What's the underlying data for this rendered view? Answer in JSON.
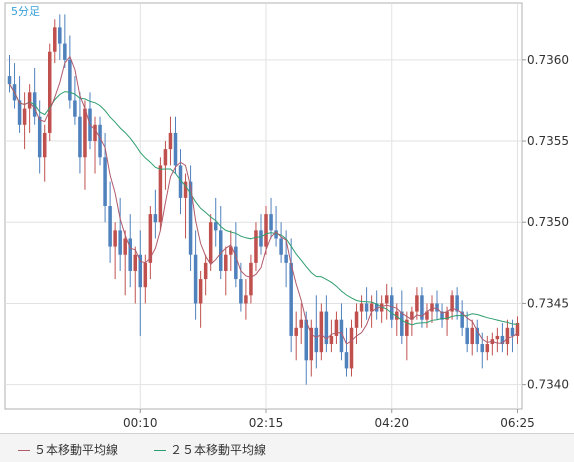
{
  "chart_data": {
    "type": "candlestick",
    "title": "5分足",
    "y_ticks": [
      "0.7360",
      "0.7355",
      "0.7350",
      "0.7345",
      "0.7340"
    ],
    "y_tick_values": [
      0.736,
      0.7355,
      0.735,
      0.7345,
      0.734
    ],
    "ylim": [
      0.73385,
      0.73635
    ],
    "x_ticks": [
      "00:10",
      "02:15",
      "04:20",
      "06:25"
    ],
    "x_tick_index": [
      26,
      51,
      76,
      101
    ],
    "grid": true,
    "colors": {
      "up": "#c0504d",
      "down": "#4f81bd",
      "ma5": "#b05a6a",
      "ma25": "#2e9e6e"
    },
    "series": [
      {
        "name": "５本移動平均線",
        "color": "#b05a6a"
      },
      {
        "name": "２５本移動平均線",
        "color": "#2e9e6e"
      }
    ],
    "ohlc": [
      [
        0.7359,
        0.73603,
        0.7358,
        0.73585
      ],
      [
        0.73585,
        0.73598,
        0.7357,
        0.73575
      ],
      [
        0.73575,
        0.7359,
        0.73555,
        0.7356
      ],
      [
        0.7356,
        0.7358,
        0.73545,
        0.7357
      ],
      [
        0.7357,
        0.73585,
        0.73555,
        0.7358
      ],
      [
        0.7358,
        0.73595,
        0.7356,
        0.73565
      ],
      [
        0.73565,
        0.73575,
        0.7353,
        0.7354
      ],
      [
        0.7354,
        0.7356,
        0.73525,
        0.73555
      ],
      [
        0.73555,
        0.7361,
        0.7355,
        0.73605
      ],
      [
        0.73605,
        0.73625,
        0.73598,
        0.7362
      ],
      [
        0.7362,
        0.73628,
        0.736,
        0.7361
      ],
      [
        0.7361,
        0.73628,
        0.73595,
        0.736
      ],
      [
        0.736,
        0.73615,
        0.7357,
        0.73575
      ],
      [
        0.73575,
        0.7359,
        0.7356,
        0.73565
      ],
      [
        0.73565,
        0.7358,
        0.7353,
        0.7354
      ],
      [
        0.7354,
        0.73575,
        0.7352,
        0.7357
      ],
      [
        0.7357,
        0.7358,
        0.73545,
        0.7355
      ],
      [
        0.7355,
        0.73565,
        0.7353,
        0.7356
      ],
      [
        0.7356,
        0.73565,
        0.73535,
        0.7354
      ],
      [
        0.7354,
        0.73555,
        0.735,
        0.7351
      ],
      [
        0.7351,
        0.73525,
        0.73475,
        0.73485
      ],
      [
        0.73485,
        0.735,
        0.73465,
        0.73495
      ],
      [
        0.73495,
        0.73515,
        0.7347,
        0.7348
      ],
      [
        0.7348,
        0.73495,
        0.73455,
        0.7349
      ],
      [
        0.7349,
        0.73505,
        0.7346,
        0.7347
      ],
      [
        0.7347,
        0.73485,
        0.7345,
        0.7348
      ],
      [
        0.7348,
        0.73495,
        0.7343,
        0.7346
      ],
      [
        0.7346,
        0.7348,
        0.7345,
        0.73475
      ],
      [
        0.73475,
        0.7351,
        0.73465,
        0.73505
      ],
      [
        0.73505,
        0.7352,
        0.7349,
        0.735
      ],
      [
        0.735,
        0.7354,
        0.73495,
        0.73535
      ],
      [
        0.73535,
        0.7355,
        0.7352,
        0.73545
      ],
      [
        0.73545,
        0.73565,
        0.73535,
        0.73555
      ],
      [
        0.73555,
        0.73565,
        0.7353,
        0.73535
      ],
      [
        0.73535,
        0.73545,
        0.73505,
        0.73515
      ],
      [
        0.73515,
        0.7353,
        0.7349,
        0.73525
      ],
      [
        0.73525,
        0.73535,
        0.7347,
        0.7348
      ],
      [
        0.7348,
        0.73495,
        0.7344,
        0.7345
      ],
      [
        0.7345,
        0.7347,
        0.73435,
        0.73465
      ],
      [
        0.73465,
        0.7348,
        0.73455,
        0.73475
      ],
      [
        0.73475,
        0.73505,
        0.7347,
        0.735
      ],
      [
        0.735,
        0.73515,
        0.73485,
        0.73495
      ],
      [
        0.73495,
        0.7351,
        0.73465,
        0.7347
      ],
      [
        0.7347,
        0.73485,
        0.73455,
        0.7348
      ],
      [
        0.7348,
        0.73495,
        0.7347,
        0.73485
      ],
      [
        0.73485,
        0.735,
        0.7346,
        0.73465
      ],
      [
        0.73465,
        0.73475,
        0.73445,
        0.7345
      ],
      [
        0.7345,
        0.73465,
        0.7344,
        0.73455
      ],
      [
        0.73455,
        0.7348,
        0.7345,
        0.73475
      ],
      [
        0.73475,
        0.735,
        0.7347,
        0.73495
      ],
      [
        0.73495,
        0.73505,
        0.7348,
        0.73485
      ],
      [
        0.73485,
        0.7351,
        0.7348,
        0.73505
      ],
      [
        0.73505,
        0.73515,
        0.7349,
        0.73495
      ],
      [
        0.73495,
        0.7351,
        0.73485,
        0.7349
      ],
      [
        0.7349,
        0.735,
        0.73475,
        0.7348
      ],
      [
        0.7348,
        0.73495,
        0.7346,
        0.73475
      ],
      [
        0.73475,
        0.7349,
        0.7342,
        0.7343
      ],
      [
        0.7343,
        0.73445,
        0.73415,
        0.73435
      ],
      [
        0.73435,
        0.7345,
        0.73425,
        0.7344
      ],
      [
        0.7344,
        0.73445,
        0.734,
        0.73415
      ],
      [
        0.73415,
        0.7344,
        0.73405,
        0.73435
      ],
      [
        0.73435,
        0.73455,
        0.7341,
        0.7342
      ],
      [
        0.7342,
        0.7345,
        0.73415,
        0.73445
      ],
      [
        0.73445,
        0.73455,
        0.7342,
        0.73425
      ],
      [
        0.73425,
        0.7344,
        0.7342,
        0.7343
      ],
      [
        0.7343,
        0.73445,
        0.73425,
        0.7344
      ],
      [
        0.7344,
        0.7345,
        0.73415,
        0.7342
      ],
      [
        0.7342,
        0.73435,
        0.73405,
        0.7341
      ],
      [
        0.7341,
        0.7344,
        0.73405,
        0.73435
      ],
      [
        0.73435,
        0.7345,
        0.73425,
        0.73445
      ],
      [
        0.73445,
        0.73455,
        0.73435,
        0.7345
      ],
      [
        0.7345,
        0.7346,
        0.7344,
        0.73445
      ],
      [
        0.73445,
        0.73455,
        0.73435,
        0.7345
      ],
      [
        0.7345,
        0.73458,
        0.7344,
        0.73445
      ],
      [
        0.73445,
        0.73455,
        0.73438,
        0.7345
      ],
      [
        0.7345,
        0.73462,
        0.7344,
        0.73455
      ],
      [
        0.73455,
        0.7346,
        0.73435,
        0.7344
      ],
      [
        0.7344,
        0.7345,
        0.7343,
        0.73445
      ],
      [
        0.73445,
        0.73458,
        0.73425,
        0.7343
      ],
      [
        0.7343,
        0.73445,
        0.73415,
        0.7344
      ],
      [
        0.7344,
        0.73448,
        0.7343,
        0.73445
      ],
      [
        0.73445,
        0.7346,
        0.7344,
        0.73455
      ],
      [
        0.73455,
        0.7346,
        0.73435,
        0.7344
      ],
      [
        0.7344,
        0.7345,
        0.73435,
        0.73445
      ],
      [
        0.73445,
        0.73455,
        0.73438,
        0.7345
      ],
      [
        0.7345,
        0.73458,
        0.7344,
        0.73445
      ],
      [
        0.73445,
        0.7345,
        0.73435,
        0.7344
      ],
      [
        0.7344,
        0.73448,
        0.7343,
        0.73445
      ],
      [
        0.73445,
        0.73458,
        0.7344,
        0.73455
      ],
      [
        0.73455,
        0.7346,
        0.7344,
        0.73445
      ],
      [
        0.73445,
        0.73452,
        0.7343,
        0.73435
      ],
      [
        0.73435,
        0.73445,
        0.7342,
        0.73425
      ],
      [
        0.73425,
        0.7344,
        0.73418,
        0.73435
      ],
      [
        0.73435,
        0.7344,
        0.7342,
        0.73425
      ],
      [
        0.73425,
        0.73432,
        0.7341,
        0.7342
      ],
      [
        0.7342,
        0.7343,
        0.73415,
        0.73425
      ],
      [
        0.73425,
        0.73432,
        0.73418,
        0.73428
      ],
      [
        0.73428,
        0.73435,
        0.7342,
        0.7343
      ],
      [
        0.7343,
        0.73438,
        0.7342,
        0.73425
      ],
      [
        0.73425,
        0.7344,
        0.73418,
        0.73435
      ],
      [
        0.73435,
        0.7344,
        0.7342,
        0.7343
      ],
      [
        0.7343,
        0.73442,
        0.73425,
        0.73438
      ]
    ]
  }
}
